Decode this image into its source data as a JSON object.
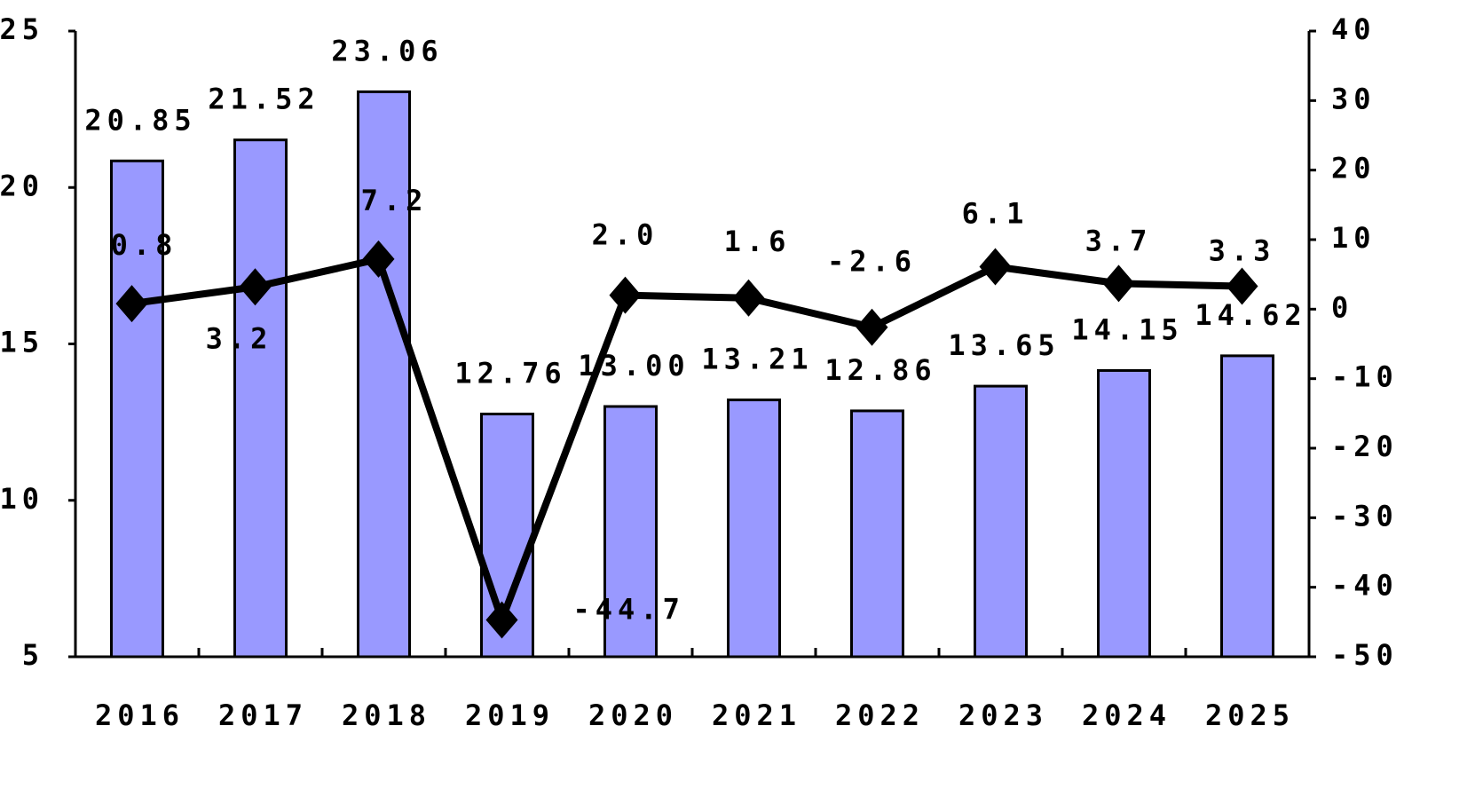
{
  "chart_data": {
    "type": "bar",
    "categories": [
      "2016",
      "2017",
      "2018",
      "2019",
      "2020",
      "2021",
      "2022",
      "2023",
      "2024",
      "2025"
    ],
    "series": [
      {
        "name": "bar",
        "type": "bar",
        "color": "#9999ff",
        "values": [
          20.85,
          21.52,
          23.06,
          12.76,
          13.0,
          13.21,
          12.86,
          13.65,
          14.15,
          14.62
        ],
        "value_labels": [
          "20.85",
          "21.52",
          "23.06",
          "12.76",
          "13.00",
          "13.21",
          "12.86",
          "13.65",
          "14.15",
          "14.62"
        ]
      },
      {
        "name": "line",
        "type": "line",
        "axis": "y2",
        "color": "#000000",
        "values": [
          0.8,
          3.2,
          7.2,
          -44.7,
          2.0,
          1.6,
          -2.6,
          6.1,
          3.7,
          3.3
        ],
        "value_labels": [
          "0.8",
          "3.2",
          "7.2",
          "-44.7",
          "2.0",
          "1.6",
          "-2.6",
          "6.1",
          "3.7",
          "3.3"
        ]
      }
    ],
    "ylim": [
      5,
      25
    ],
    "yticks": [
      5,
      10,
      15,
      20,
      25
    ],
    "y2lim": [
      -50,
      40
    ],
    "y2ticks": [
      -50,
      -40,
      -30,
      -20,
      -10,
      0,
      10,
      20,
      30,
      40
    ],
    "grid": false
  }
}
